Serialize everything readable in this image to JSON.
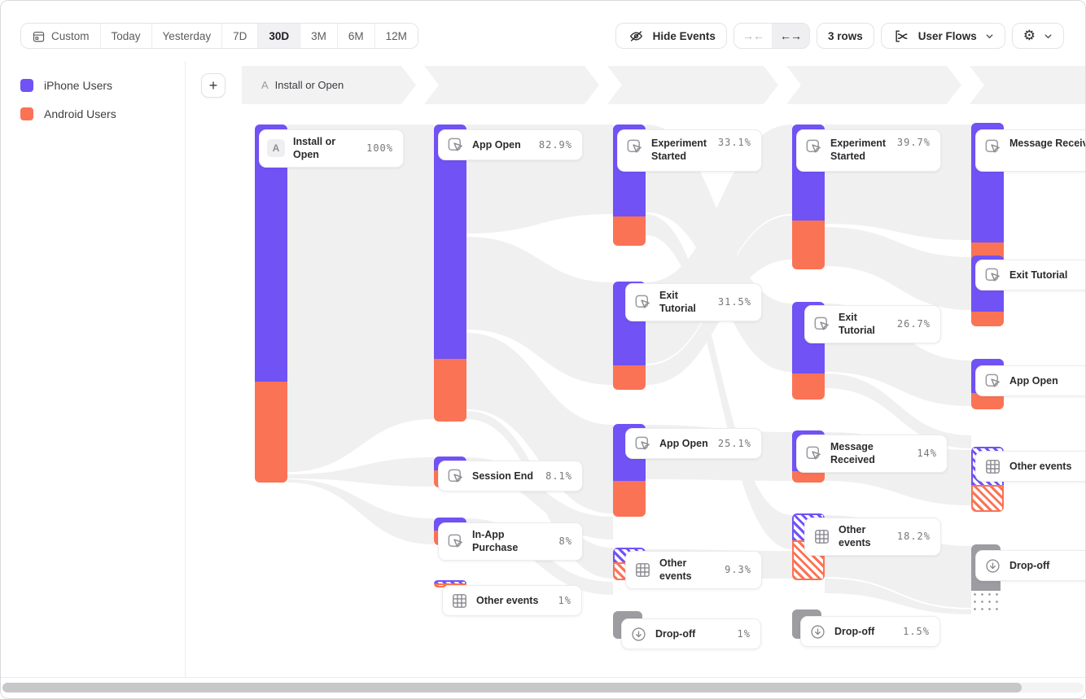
{
  "toolbar": {
    "date_ranges": [
      {
        "label": "Custom",
        "icon": "calendar-icon",
        "active": false
      },
      {
        "label": "Today",
        "active": false
      },
      {
        "label": "Yesterday",
        "active": false
      },
      {
        "label": "7D",
        "active": false
      },
      {
        "label": "30D",
        "active": true
      },
      {
        "label": "3M",
        "active": false
      },
      {
        "label": "6M",
        "active": false
      },
      {
        "label": "12M",
        "active": false
      }
    ],
    "hide_events_label": "Hide Events",
    "collapse_arrows": "→←",
    "expand_arrows": "←→",
    "rows_label": "3 rows",
    "view_selector_label": "User Flows",
    "icons": {
      "hide_events": "eye-off-icon",
      "view_selector": "flows-chart-icon",
      "settings": "gear-icon",
      "caret": "chevron-down-icon"
    },
    "gear_glyph": "⚙"
  },
  "legend": {
    "items": [
      {
        "label": "iPhone Users",
        "color": "#7152f5"
      },
      {
        "label": "Android Users",
        "color": "#fa7355"
      }
    ]
  },
  "flow_header": {
    "step_badge": "A",
    "step_label": "Install or Open"
  },
  "plus_button_label": "+",
  "chart_data": {
    "type": "sankey",
    "subtype": "user-flows",
    "series": [
      {
        "name": "iPhone Users",
        "color": "#7152f5"
      },
      {
        "name": "Android Users",
        "color": "#fa7355"
      }
    ],
    "steps": [
      {
        "step": "A",
        "nodes": [
          {
            "label": "Install or Open",
            "pct": "100%",
            "kind": "start",
            "badge": "A"
          }
        ]
      },
      {
        "step": "2",
        "nodes": [
          {
            "label": "App Open",
            "pct": "82.9%",
            "kind": "event"
          },
          {
            "label": "Session End",
            "pct": "8.1%",
            "kind": "event"
          },
          {
            "label": "In-App Purchase",
            "pct": "8%",
            "kind": "event"
          },
          {
            "label": "Other events",
            "pct": "1%",
            "kind": "other"
          }
        ]
      },
      {
        "step": "3",
        "nodes": [
          {
            "label": "Experiment Started",
            "pct": "33.1%",
            "kind": "event"
          },
          {
            "label": "Exit Tutorial",
            "pct": "31.5%",
            "kind": "event"
          },
          {
            "label": "App Open",
            "pct": "25.1%",
            "kind": "event"
          },
          {
            "label": "Other events",
            "pct": "9.3%",
            "kind": "other"
          },
          {
            "label": "Drop-off",
            "pct": "1%",
            "kind": "dropoff"
          }
        ]
      },
      {
        "step": "4",
        "nodes": [
          {
            "label": "Experiment Started",
            "pct": "39.7%",
            "kind": "event"
          },
          {
            "label": "Exit Tutorial",
            "pct": "26.7%",
            "kind": "event"
          },
          {
            "label": "Message Received",
            "pct": "14%",
            "kind": "event"
          },
          {
            "label": "Other events",
            "pct": "18.2%",
            "kind": "other"
          },
          {
            "label": "Drop-off",
            "pct": "1.5%",
            "kind": "dropoff"
          }
        ]
      },
      {
        "step": "5",
        "nodes": [
          {
            "label": "Message Received",
            "pct": "",
            "kind": "event"
          },
          {
            "label": "Exit Tutorial",
            "pct": "",
            "kind": "event"
          },
          {
            "label": "App Open",
            "pct": "",
            "kind": "event"
          },
          {
            "label": "Other events",
            "pct": "",
            "kind": "other"
          },
          {
            "label": "Drop-off",
            "pct": "",
            "kind": "dropoff"
          }
        ]
      }
    ]
  }
}
